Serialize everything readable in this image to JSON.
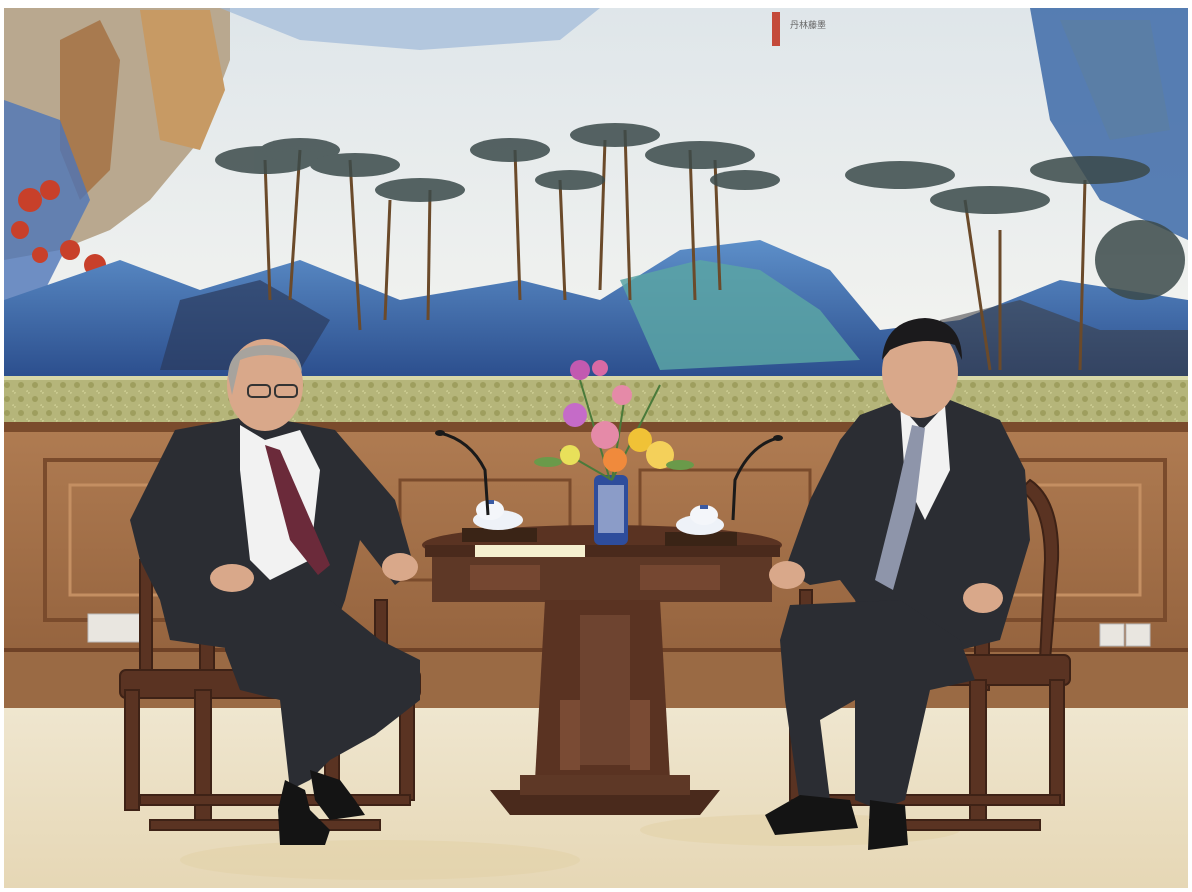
{
  "scene": {
    "description_colors": {
      "frame": "#ffffff",
      "painting_sky": "#eef0ee",
      "painting_blue": "#3f6fb4",
      "painting_teal": "#5aa5a4",
      "painting_red": "#c8402a",
      "brocade_band": "#b5b57a",
      "wood_panel": "#a8754a",
      "wood_dark": "#5a3322",
      "carpet": "#efe6cf",
      "suit_dark": "#2b2d33",
      "shirt": "#f2f2f2",
      "tie_left": "#6b2a3a",
      "tie_right": "#8e95aa",
      "skin": "#d9a88a",
      "hair_gray": "#a7a39d",
      "hair_black": "#1b1a1c",
      "vase_blue": "#2e4d9c",
      "flower_pink": "#e58aa8",
      "flower_yellow": "#f0c236",
      "outlet": "#e9e6e0"
    },
    "seal_text": "丹林藤墨"
  }
}
